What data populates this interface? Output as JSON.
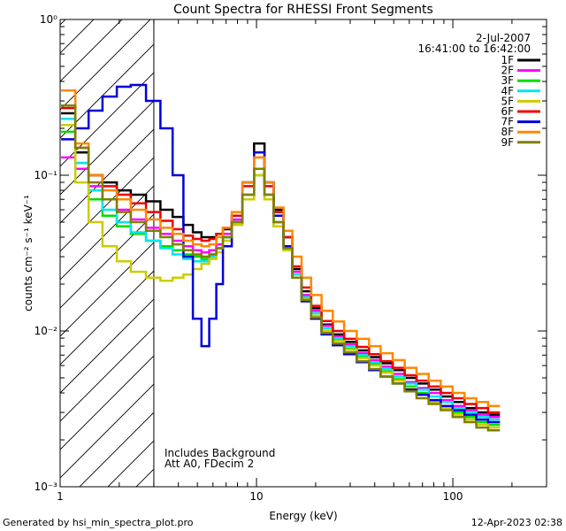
{
  "chart_data": {
    "type": "line",
    "title": "Count Spectra for RHESSI Front Segments",
    "xlabel": "Energy (keV)",
    "ylabel": "counts cm⁻² s⁻¹ keV⁻¹",
    "xscale": "log",
    "yscale": "log",
    "xlim": [
      1,
      300
    ],
    "ylim": [
      0.001,
      1
    ],
    "x_ticks": [
      {
        "value": 1,
        "label": "1"
      },
      {
        "value": 10,
        "label": "10"
      },
      {
        "value": 100,
        "label": "100"
      }
    ],
    "y_ticks": [
      {
        "value": 1,
        "label": "10⁰"
      },
      {
        "value": 0.1,
        "label": "10⁻¹"
      },
      {
        "value": 0.01,
        "label": "10⁻²"
      },
      {
        "value": 0.001,
        "label": "10⁻³"
      }
    ],
    "legend_header": [
      "2-Jul-2007",
      "16:41:00 to 16:42:00"
    ],
    "legend_position": "top-right",
    "shaded_region": {
      "x_from": 1,
      "x_to": 3,
      "style": "diagonal-hatch"
    },
    "annotations": [
      "Includes Background",
      "Att A0, FDecim 2"
    ],
    "series": [
      {
        "name": "1F",
        "color": "#000000",
        "values": [
          0.25,
          0.14,
          0.1,
          0.09,
          0.08,
          0.075,
          0.068,
          0.06,
          0.054,
          0.048,
          0.043,
          0.04,
          0.04,
          0.042,
          0.045,
          0.055,
          0.09,
          0.16,
          0.09,
          0.06,
          0.04,
          0.025,
          0.018,
          0.014,
          0.011,
          0.0095,
          0.0085,
          0.0075,
          0.0068,
          0.0062,
          0.0056,
          0.005,
          0.0046,
          0.0042,
          0.0038,
          0.0035,
          0.0032,
          0.003,
          0.0029
        ]
      },
      {
        "name": "2F",
        "color": "#ff00ff",
        "values": [
          0.13,
          0.11,
          0.085,
          0.07,
          0.06,
          0.052,
          0.046,
          0.042,
          0.038,
          0.035,
          0.033,
          0.032,
          0.033,
          0.036,
          0.042,
          0.052,
          0.075,
          0.11,
          0.075,
          0.05,
          0.035,
          0.024,
          0.017,
          0.0135,
          0.0108,
          0.0092,
          0.0082,
          0.0072,
          0.0065,
          0.0059,
          0.0053,
          0.0047,
          0.0043,
          0.004,
          0.0036,
          0.0033,
          0.0031,
          0.0029,
          0.0028
        ]
      },
      {
        "name": "3F",
        "color": "#00dd00",
        "values": [
          0.19,
          0.12,
          0.07,
          0.055,
          0.047,
          0.042,
          0.038,
          0.035,
          0.033,
          0.031,
          0.03,
          0.029,
          0.031,
          0.034,
          0.04,
          0.05,
          0.07,
          0.1,
          0.07,
          0.047,
          0.033,
          0.022,
          0.016,
          0.0125,
          0.01,
          0.0087,
          0.0077,
          0.0068,
          0.0061,
          0.0055,
          0.0049,
          0.0044,
          0.004,
          0.0036,
          0.0033,
          0.003,
          0.0028,
          0.0026,
          0.0025
        ]
      },
      {
        "name": "4F",
        "color": "#00e5ee",
        "values": [
          0.23,
          0.12,
          0.08,
          0.06,
          0.05,
          0.043,
          0.038,
          0.034,
          0.031,
          0.029,
          0.028,
          0.028,
          0.03,
          0.034,
          0.04,
          0.05,
          0.075,
          0.11,
          0.075,
          0.05,
          0.034,
          0.023,
          0.0165,
          0.013,
          0.0104,
          0.009,
          0.008,
          0.007,
          0.0063,
          0.0057,
          0.0051,
          0.0046,
          0.0042,
          0.0038,
          0.0035,
          0.0032,
          0.003,
          0.0028,
          0.0027
        ]
      },
      {
        "name": "5F",
        "color": "#cccc00",
        "values": [
          0.21,
          0.09,
          0.05,
          0.035,
          0.028,
          0.024,
          0.022,
          0.021,
          0.022,
          0.023,
          0.025,
          0.027,
          0.029,
          0.032,
          0.038,
          0.048,
          0.07,
          0.1,
          0.07,
          0.047,
          0.033,
          0.022,
          0.016,
          0.0125,
          0.01,
          0.0086,
          0.0076,
          0.0067,
          0.006,
          0.0054,
          0.0048,
          0.0043,
          0.0039,
          0.0035,
          0.0032,
          0.0029,
          0.0027,
          0.0025,
          0.0024
        ]
      },
      {
        "name": "6F",
        "color": "#ee0000",
        "values": [
          0.27,
          0.15,
          0.1,
          0.085,
          0.075,
          0.066,
          0.058,
          0.051,
          0.045,
          0.041,
          0.039,
          0.038,
          0.039,
          0.042,
          0.046,
          0.055,
          0.085,
          0.13,
          0.085,
          0.058,
          0.04,
          0.026,
          0.019,
          0.0145,
          0.0116,
          0.01,
          0.0089,
          0.0079,
          0.0071,
          0.0064,
          0.0058,
          0.0052,
          0.0048,
          0.0044,
          0.004,
          0.0037,
          0.0034,
          0.0032,
          0.003
        ]
      },
      {
        "name": "7F",
        "color": "#0000dd",
        "values": [
          0.17,
          0.2,
          0.26,
          0.32,
          0.37,
          0.38,
          0.3,
          0.2,
          0.1,
          0.03,
          0.012,
          0.008,
          0.012,
          0.02,
          0.035,
          0.05,
          0.09,
          0.14,
          0.09,
          0.055,
          0.035,
          0.022,
          0.0155,
          0.012,
          0.0095,
          0.0081,
          0.0071,
          0.0063,
          0.0056,
          0.0051,
          0.0046,
          0.0042,
          0.0039,
          0.0036,
          0.0033,
          0.0031,
          0.0029,
          0.0027,
          0.0026
        ]
      },
      {
        "name": "8F",
        "color": "#ff8800",
        "values": [
          0.35,
          0.16,
          0.1,
          0.08,
          0.07,
          0.06,
          0.052,
          0.046,
          0.042,
          0.038,
          0.036,
          0.035,
          0.036,
          0.04,
          0.046,
          0.058,
          0.09,
          0.13,
          0.09,
          0.062,
          0.044,
          0.03,
          0.022,
          0.017,
          0.0135,
          0.0115,
          0.01,
          0.0089,
          0.008,
          0.0072,
          0.0065,
          0.0058,
          0.0053,
          0.0048,
          0.0044,
          0.004,
          0.0037,
          0.0035,
          0.0033
        ]
      },
      {
        "name": "9F",
        "color": "#808000",
        "values": [
          0.28,
          0.15,
          0.09,
          0.07,
          0.058,
          0.05,
          0.044,
          0.04,
          0.036,
          0.033,
          0.031,
          0.03,
          0.031,
          0.034,
          0.04,
          0.05,
          0.075,
          0.11,
          0.075,
          0.05,
          0.034,
          0.022,
          0.0158,
          0.0122,
          0.0097,
          0.0083,
          0.0073,
          0.0064,
          0.0057,
          0.0051,
          0.0046,
          0.0041,
          0.0037,
          0.0034,
          0.0031,
          0.0028,
          0.0026,
          0.0024,
          0.0023
        ]
      }
    ],
    "energy_bins": [
      1.1,
      1.3,
      1.5,
      1.8,
      2.1,
      2.5,
      3.0,
      3.5,
      4.0,
      4.5,
      5.0,
      5.5,
      6.0,
      6.5,
      7.0,
      8.0,
      9.0,
      10.5,
      11.5,
      13.0,
      14.5,
      16.0,
      18.0,
      20.0,
      23.0,
      26.0,
      30.0,
      35.0,
      40.0,
      46.0,
      53.0,
      61.0,
      70.0,
      81.0,
      93.0,
      107.0,
      123.0,
      141.0,
      162.0
    ]
  },
  "footer": {
    "generated_by": "Generated by hsi_min_spectra_plot.pro",
    "timestamp": "12-Apr-2023 02:38"
  }
}
